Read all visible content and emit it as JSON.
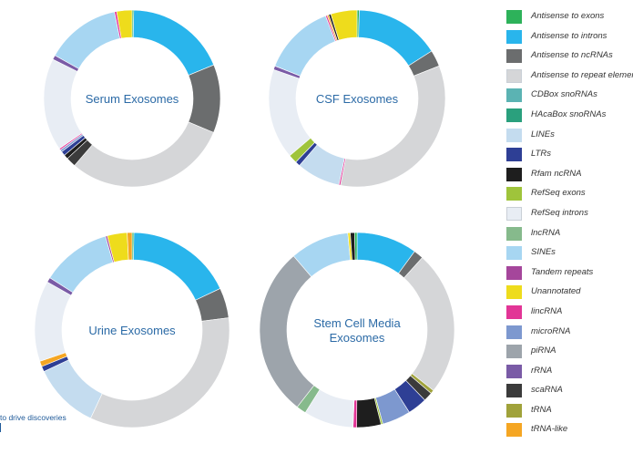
{
  "chart_data": {
    "type": "pie",
    "variant": "donut",
    "legend_position": "right",
    "categories": [
      {
        "name": "Antisense to exons",
        "color": "#2db25a"
      },
      {
        "name": "Antisense to introns",
        "color": "#29b5ec"
      },
      {
        "name": "Antisense to ncRNAs",
        "color": "#6b6d6e"
      },
      {
        "name": "Antisense to repeat elements",
        "color": "#d5d6d8"
      },
      {
        "name": "CDBox snoRNAs",
        "color": "#5bb3b3"
      },
      {
        "name": "HAcaBox snoRNAs",
        "color": "#2aa07d"
      },
      {
        "name": "LINEs",
        "color": "#c4dcef"
      },
      {
        "name": "LTRs",
        "color": "#2e3f95"
      },
      {
        "name": "Rfam ncRNA",
        "color": "#1e1e1e"
      },
      {
        "name": "RefSeq exons",
        "color": "#9fc43b"
      },
      {
        "name": "RefSeq introns",
        "color": "#e8edf4"
      },
      {
        "name": "lncRNA",
        "color": "#86ba8c"
      },
      {
        "name": "SINEs",
        "color": "#a7d6f2"
      },
      {
        "name": "Tandem repeats",
        "color": "#a5469b"
      },
      {
        "name": "Unannotated",
        "color": "#eedc1c"
      },
      {
        "name": "lincRNA",
        "color": "#e23596"
      },
      {
        "name": "microRNA",
        "color": "#7d98cf"
      },
      {
        "name": "piRNA",
        "color": "#9da4ab"
      },
      {
        "name": "rRNA",
        "color": "#7a5ba6"
      },
      {
        "name": "scaRNA",
        "color": "#3b3b3b"
      },
      {
        "name": "tRNA",
        "color": "#a0a23a"
      },
      {
        "name": "tRNA-like",
        "color": "#f5a623"
      }
    ],
    "legend_labels": [
      "Antisense to exons",
      "Antisense to introns",
      "Antisense to ncRNAs",
      "Antisense to repeat elemen",
      "CDBox snoRNAs",
      "HAcaBox snoRNAs",
      "LINEs",
      "LTRs",
      "Rfam ncRNA",
      "RefSeq exons",
      "RefSeq introns",
      "lncRNA",
      "SINEs",
      "Tandem repeats",
      "Unannotated",
      "lincRNA",
      "microRNA",
      "piRNA",
      "rRNA",
      "scaRNA",
      "tRNA",
      "tRNA-like"
    ],
    "charts": [
      {
        "title": "Serum Exosomes",
        "slices": [
          {
            "label": "Antisense to exons",
            "value": 0.3
          },
          {
            "label": "Antisense to introns",
            "value": 18.5
          },
          {
            "label": "Antisense to ncRNAs",
            "value": 12.5
          },
          {
            "label": "Antisense to repeat elements",
            "value": 30.0
          },
          {
            "label": "scaRNA",
            "value": 1.8
          },
          {
            "label": "Rfam ncRNA",
            "value": 0.8
          },
          {
            "label": "LTRs",
            "value": 0.8
          },
          {
            "label": "microRNA",
            "value": 0.4
          },
          {
            "label": "lincRNA",
            "value": 0.3
          },
          {
            "label": "RefSeq introns",
            "value": 16.9
          },
          {
            "label": "rRNA",
            "value": 0.8
          },
          {
            "label": "SINEs",
            "value": 13.7
          },
          {
            "label": "lincRNA",
            "value": 0.4
          },
          {
            "label": "Unannotated",
            "value": 2.8
          }
        ]
      },
      {
        "title": "CSF Exosomes",
        "slices": [
          {
            "label": "Antisense to exons",
            "value": 0.4
          },
          {
            "label": "Antisense to introns",
            "value": 15.6
          },
          {
            "label": "Antisense to ncRNAs",
            "value": 3.0
          },
          {
            "label": "Antisense to repeat elements",
            "value": 34.0
          },
          {
            "label": "lincRNA",
            "value": 0.3
          },
          {
            "label": "LINEs",
            "value": 8.0
          },
          {
            "label": "LTRs",
            "value": 0.9
          },
          {
            "label": "RefSeq exons",
            "value": 1.6
          },
          {
            "label": "RefSeq introns",
            "value": 16.5
          },
          {
            "label": "rRNA",
            "value": 0.7
          },
          {
            "label": "SINEs",
            "value": 13.2
          },
          {
            "label": "lincRNA",
            "value": 0.3
          },
          {
            "label": "tRNA-like",
            "value": 0.3
          },
          {
            "label": "Rfam ncRNA",
            "value": 0.4
          },
          {
            "label": "Unannotated",
            "value": 4.8
          }
        ]
      },
      {
        "title": "Urine Exosomes",
        "slices": [
          {
            "label": "Antisense to exons",
            "value": 0.3
          },
          {
            "label": "Antisense to introns",
            "value": 17.7
          },
          {
            "label": "Antisense to ncRNAs",
            "value": 5.0
          },
          {
            "label": "Antisense to repeat elements",
            "value": 34.0
          },
          {
            "label": "LINEs",
            "value": 11.0
          },
          {
            "label": "LTRs",
            "value": 0.9
          },
          {
            "label": "tRNA-like",
            "value": 0.9
          },
          {
            "label": "RefSeq introns",
            "value": 13.4
          },
          {
            "label": "rRNA",
            "value": 0.8
          },
          {
            "label": "SINEs",
            "value": 11.6
          },
          {
            "label": "Tandem repeats",
            "value": 0.3
          },
          {
            "label": "Unannotated",
            "value": 3.3
          },
          {
            "label": "tRNA-like",
            "value": 0.8
          }
        ]
      },
      {
        "title": "Stem Cell Media Exosomes",
        "slices": [
          {
            "label": "Antisense to introns",
            "value": 10.0
          },
          {
            "label": "Antisense to ncRNAs",
            "value": 1.6
          },
          {
            "label": "Antisense to repeat elements",
            "value": 23.8
          },
          {
            "label": "tRNA",
            "value": 0.6
          },
          {
            "label": "scaRNA",
            "value": 1.5
          },
          {
            "label": "LTRs",
            "value": 3.2
          },
          {
            "label": "microRNA",
            "value": 4.7
          },
          {
            "label": "RefSeq exons",
            "value": 0.3
          },
          {
            "label": "Rfam ncRNA",
            "value": 4.0
          },
          {
            "label": "lincRNA",
            "value": 0.6
          },
          {
            "label": "RefSeq introns",
            "value": 8.2
          },
          {
            "label": "lncRNA",
            "value": 1.6
          },
          {
            "label": "piRNA",
            "value": 28.0
          },
          {
            "label": "SINEs",
            "value": 9.7
          },
          {
            "label": "Unannotated",
            "value": 0.4
          },
          {
            "label": "Rfam ncRNA",
            "value": 0.7
          },
          {
            "label": "Antisense to exons",
            "value": 0.4
          }
        ]
      }
    ]
  },
  "footer": {
    "text": "to drive discoveries"
  }
}
